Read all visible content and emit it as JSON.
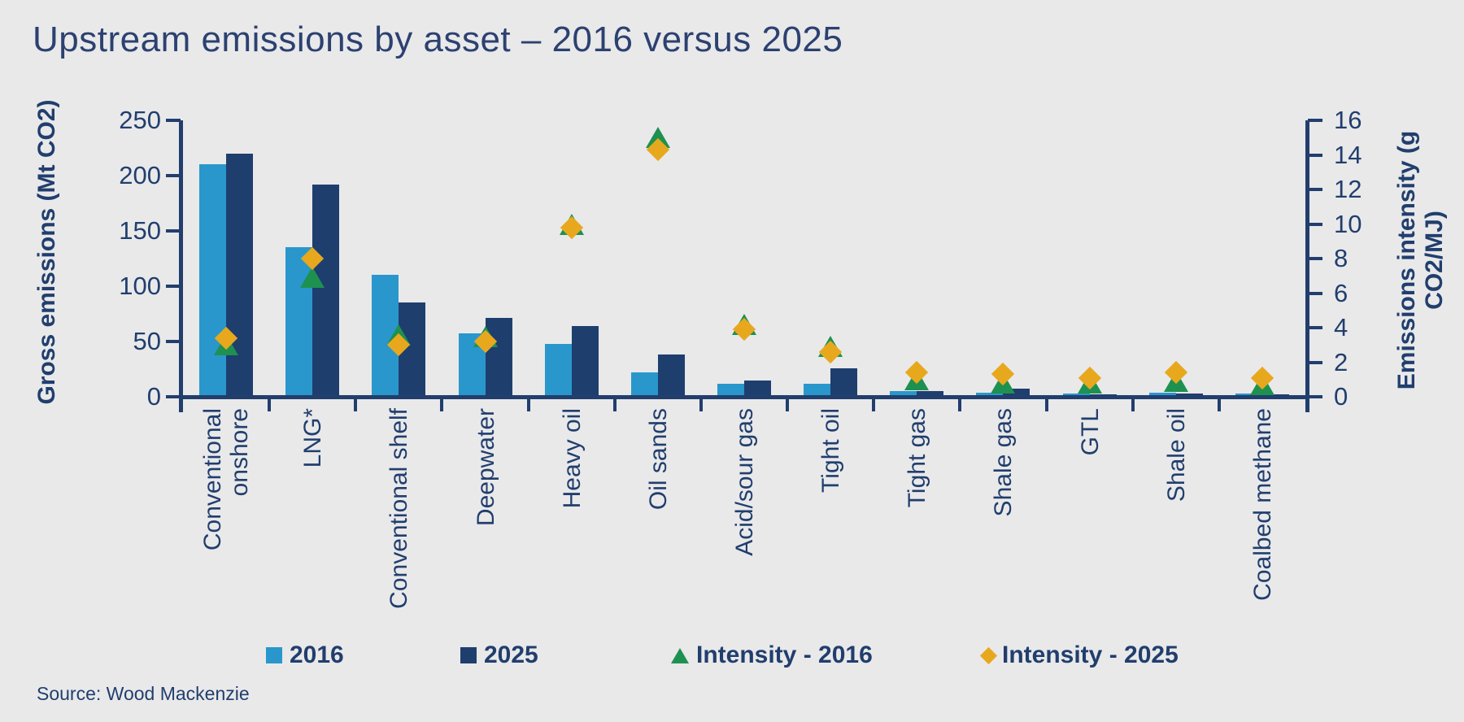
{
  "page": {
    "title": "Upstream emissions by asset – 2016 versus 2025",
    "source": "Source: Wood Mackenzie",
    "background": "#E9E9EA"
  },
  "legend": {
    "position": "bottom",
    "items": [
      {
        "label": "2016",
        "shape": "square",
        "color": "#2997CC"
      },
      {
        "label": "2025",
        "shape": "square",
        "color": "#1E3E6E"
      },
      {
        "label": "Intensity - 2016",
        "shape": "triangle",
        "color": "#1E9150"
      },
      {
        "label": "Intensity - 2025",
        "shape": "diamond",
        "color": "#E8A81E"
      }
    ]
  },
  "chart_data": {
    "type": "combo-bar-scatter",
    "title": "Upstream emissions by asset – 2016 versus 2025",
    "grid": "off",
    "categories": [
      "Conventional onshore",
      "LNG*",
      "Conventional shelf",
      "Deepwater",
      "Heavy oil",
      "Oil sands",
      "Acid/sour gas",
      "Tight oil",
      "Tight gas",
      "Shale gas",
      "GTL",
      "Shale oil",
      "Coalbed methane"
    ],
    "series": [
      {
        "name": "2016",
        "render": "bar",
        "axis": "left",
        "color": "#2997CC",
        "values": [
          210,
          135,
          110,
          57,
          48,
          22,
          12,
          12,
          5,
          3.5,
          3,
          3.5,
          3
        ]
      },
      {
        "name": "2025",
        "render": "bar",
        "axis": "left",
        "color": "#1E3E6E",
        "values": [
          220,
          192,
          85,
          71,
          64,
          38,
          15,
          26,
          5,
          7,
          2.5,
          3,
          2.5
        ]
      },
      {
        "name": "Intensity - 2016",
        "render": "triangle",
        "axis": "right",
        "color": "#1E9150",
        "values": [
          3.0,
          6.9,
          3.6,
          3.5,
          10.0,
          15.0,
          4.2,
          2.9,
          1.0,
          0.8,
          0.8,
          0.9,
          0.7
        ]
      },
      {
        "name": "Intensity - 2025",
        "render": "diamond",
        "axis": "right",
        "color": "#E8A81E",
        "values": [
          3.4,
          8.0,
          3.0,
          3.2,
          9.8,
          14.3,
          3.9,
          2.6,
          1.4,
          1.3,
          1.1,
          1.4,
          1.1
        ]
      }
    ],
    "left_axis": {
      "label": "Gross emissions (Mt CO2)",
      "min": 0,
      "max": 250,
      "ticks": [
        0,
        50,
        100,
        150,
        200,
        250
      ]
    },
    "right_axis": {
      "label": "Emissions intensity (g CO2/MJ)",
      "min": 0,
      "max": 16,
      "ticks": [
        0,
        2,
        4,
        6,
        8,
        10,
        12,
        14,
        16
      ]
    },
    "axis_color": "#213E6D"
  }
}
